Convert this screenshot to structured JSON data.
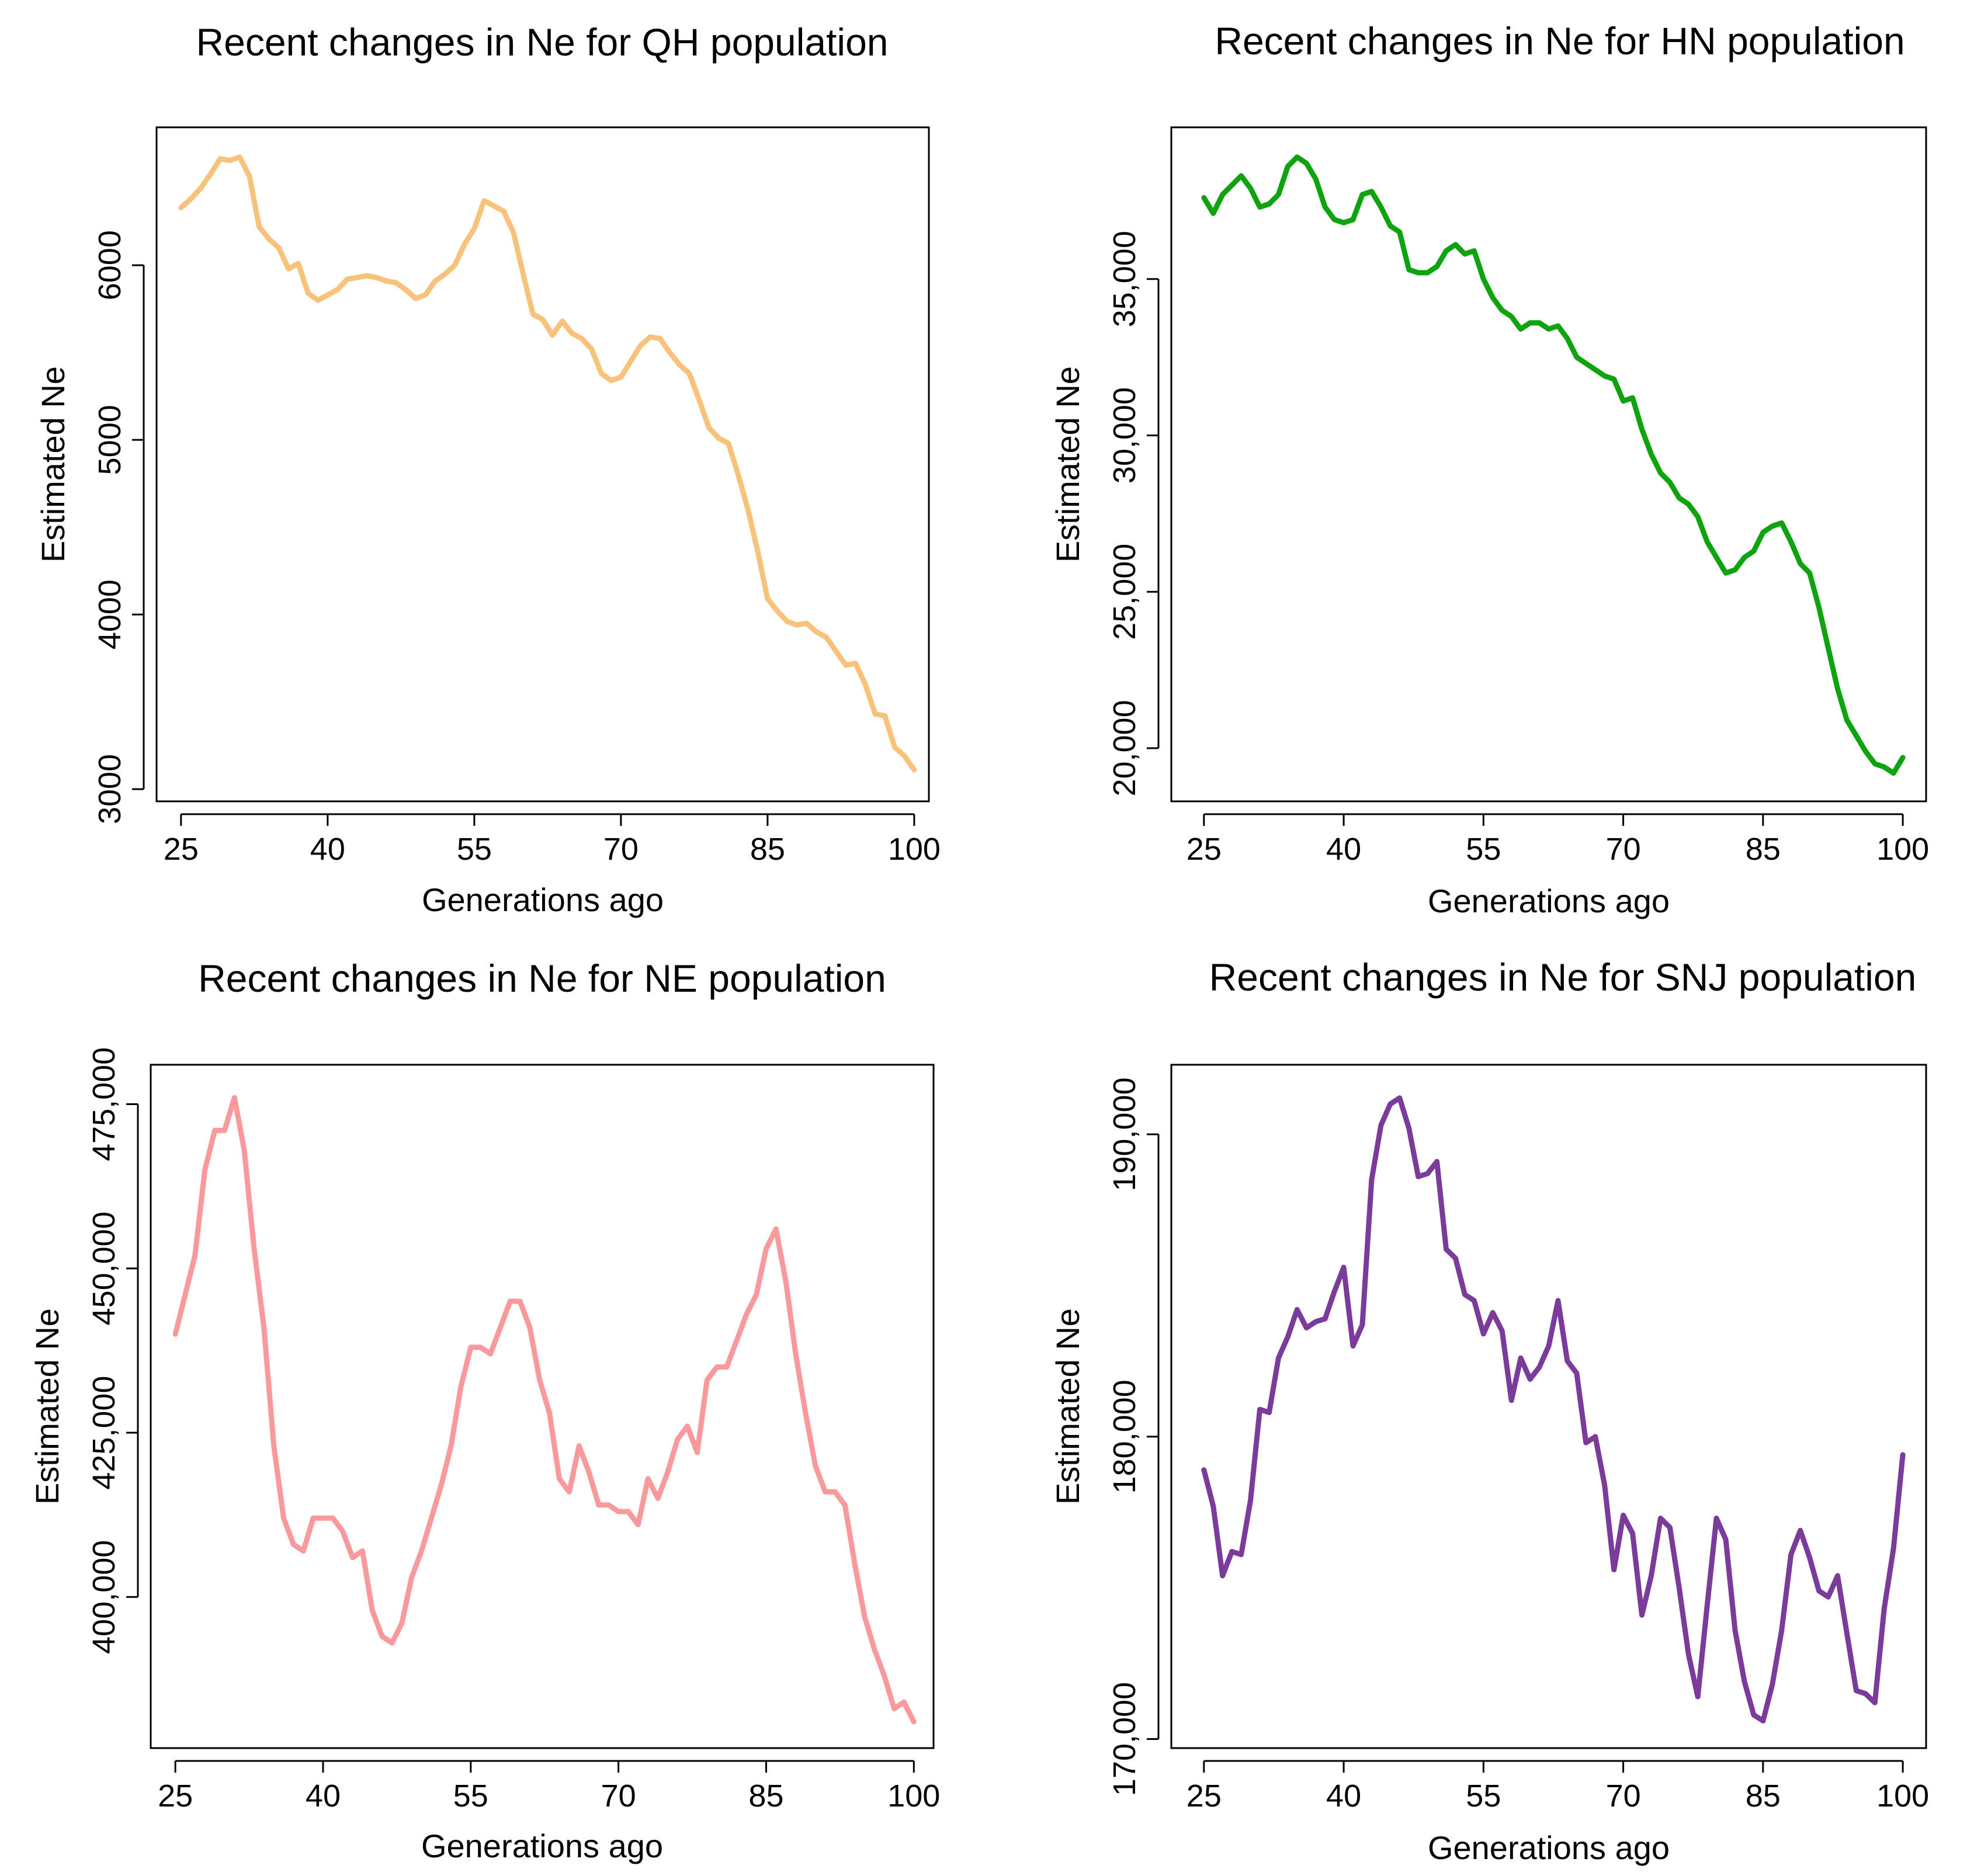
{
  "chart_data": [
    {
      "type": "line",
      "title": "Recent changes in Ne for QH population",
      "xlabel": "Generations ago",
      "ylabel": "Estimated Ne",
      "color": "#f9c27b",
      "xlim": [
        22.5,
        101.5
      ],
      "ylim": [
        2930,
        6790
      ],
      "xticks": [
        25,
        40,
        55,
        70,
        85,
        100
      ],
      "xtick_labels": [
        "25",
        "40",
        "55",
        "70",
        "85",
        "100"
      ],
      "yticks": [
        3000,
        4000,
        5000,
        6000
      ],
      "ytick_labels": [
        "3000",
        "4000",
        "5000",
        "6000"
      ],
      "x": [
        25,
        26,
        27,
        28,
        29,
        30,
        31,
        32,
        33,
        34,
        35,
        36,
        37,
        38,
        39,
        40,
        41,
        42,
        43,
        44,
        45,
        46,
        47,
        48,
        49,
        50,
        51,
        52,
        53,
        54,
        55,
        56,
        57,
        58,
        59,
        60,
        61,
        62,
        63,
        64,
        65,
        66,
        67,
        68,
        69,
        70,
        71,
        72,
        73,
        74,
        75,
        76,
        77,
        78,
        79,
        80,
        81,
        82,
        83,
        84,
        85,
        86,
        87,
        88,
        89,
        90,
        91,
        92,
        93,
        94,
        95,
        96,
        97,
        98,
        99,
        100
      ],
      "values": [
        6330,
        6380,
        6440,
        6520,
        6610,
        6600,
        6620,
        6510,
        6220,
        6150,
        6100,
        5980,
        6010,
        5840,
        5800,
        5830,
        5860,
        5920,
        5930,
        5940,
        5930,
        5910,
        5900,
        5860,
        5810,
        5830,
        5910,
        5950,
        6000,
        6120,
        6210,
        6370,
        6340,
        6310,
        6190,
        5950,
        5720,
        5690,
        5600,
        5680,
        5610,
        5580,
        5520,
        5380,
        5340,
        5360,
        5450,
        5540,
        5590,
        5580,
        5500,
        5430,
        5380,
        5230,
        5070,
        5010,
        4980,
        4800,
        4600,
        4360,
        4090,
        4020,
        3960,
        3940,
        3950,
        3900,
        3870,
        3790,
        3710,
        3720,
        3600,
        3430,
        3420,
        3240,
        3190,
        3110
      ]
    },
    {
      "type": "line",
      "title": "Recent changes in Ne for HN population",
      "xlabel": "Generations ago",
      "ylabel": "Estimated Ne",
      "color": "#0fa30f",
      "xlim": [
        21.5,
        102.5
      ],
      "ylim": [
        18300,
        39850
      ],
      "xticks": [
        25,
        40,
        55,
        70,
        85,
        100
      ],
      "xtick_labels": [
        "25",
        "40",
        "55",
        "70",
        "85",
        "100"
      ],
      "yticks": [
        20000,
        25000,
        30000,
        35000
      ],
      "ytick_labels": [
        "20,000",
        "25,000",
        "30,000",
        "35,000"
      ],
      "x": [
        25,
        26,
        27,
        28,
        29,
        30,
        31,
        32,
        33,
        34,
        35,
        36,
        37,
        38,
        39,
        40,
        41,
        42,
        43,
        44,
        45,
        46,
        47,
        48,
        49,
        50,
        51,
        52,
        53,
        54,
        55,
        56,
        57,
        58,
        59,
        60,
        61,
        62,
        63,
        64,
        65,
        66,
        67,
        68,
        69,
        70,
        71,
        72,
        73,
        74,
        75,
        76,
        77,
        78,
        79,
        80,
        81,
        82,
        83,
        84,
        85,
        86,
        87,
        88,
        89,
        90,
        91,
        92,
        93,
        94,
        95,
        96,
        97,
        98,
        99,
        100
      ],
      "values": [
        37600,
        37100,
        37700,
        38000,
        38300,
        37900,
        37300,
        37400,
        37700,
        38600,
        38900,
        38700,
        38200,
        37300,
        36900,
        36800,
        36900,
        37700,
        37800,
        37300,
        36700,
        36500,
        35300,
        35200,
        35200,
        35400,
        35900,
        36100,
        35800,
        35900,
        35000,
        34400,
        34000,
        33800,
        33400,
        33600,
        33600,
        33400,
        33500,
        33100,
        32500,
        32300,
        32100,
        31900,
        31800,
        31100,
        31200,
        30200,
        29400,
        28800,
        28500,
        28000,
        27800,
        27400,
        26600,
        26100,
        25600,
        25700,
        26100,
        26300,
        26900,
        27100,
        27200,
        26600,
        25900,
        25600,
        24500,
        23200,
        21900,
        20900,
        20400,
        19900,
        19500,
        19400,
        19200,
        19700
      ]
    },
    {
      "type": "line",
      "title": "Recent changes in Ne for NE population",
      "xlabel": "Generations ago",
      "ylabel": "Estimated Ne",
      "color": "#f9999c",
      "xlim": [
        22.5,
        102
      ],
      "ylim": [
        377000,
        481000
      ],
      "xticks": [
        25,
        40,
        55,
        70,
        85,
        100
      ],
      "xtick_labels": [
        "25",
        "40",
        "55",
        "70",
        "85",
        "100"
      ],
      "yticks": [
        400000,
        425000,
        450000,
        475000
      ],
      "ytick_labels": [
        "400,000",
        "425,000",
        "450,000",
        "475,000"
      ],
      "x": [
        25,
        26,
        27,
        28,
        29,
        30,
        31,
        32,
        33,
        34,
        35,
        36,
        37,
        38,
        39,
        40,
        41,
        42,
        43,
        44,
        45,
        46,
        47,
        48,
        49,
        50,
        51,
        52,
        53,
        54,
        55,
        56,
        57,
        58,
        59,
        60,
        61,
        62,
        63,
        64,
        65,
        66,
        67,
        68,
        69,
        70,
        71,
        72,
        73,
        74,
        75,
        76,
        77,
        78,
        79,
        80,
        81,
        82,
        83,
        84,
        85,
        86,
        87,
        88,
        89,
        90,
        91,
        92,
        93,
        94,
        95,
        96,
        97,
        98,
        99,
        100
      ],
      "values": [
        440000,
        446000,
        452000,
        465000,
        471000,
        471000,
        476000,
        468000,
        453000,
        441000,
        423000,
        412000,
        408000,
        407000,
        412000,
        412000,
        412000,
        410000,
        406000,
        407000,
        398000,
        394000,
        393000,
        396000,
        403000,
        407000,
        412000,
        417000,
        423000,
        432000,
        438000,
        438000,
        437000,
        441000,
        445000,
        445000,
        441000,
        433000,
        428000,
        418000,
        416000,
        423000,
        419000,
        414000,
        414000,
        413000,
        413000,
        411000,
        418000,
        415000,
        419000,
        424000,
        426000,
        422000,
        433000,
        435000,
        435000,
        439000,
        443000,
        446000,
        453000,
        456000,
        448000,
        437000,
        428000,
        420000,
        416000,
        416000,
        414000,
        405000,
        397000,
        392000,
        388000,
        383000,
        384000,
        381000
      ]
    },
    {
      "type": "line",
      "title": "Recent changes in Ne for SNJ population",
      "xlabel": "Generations ago",
      "ylabel": "Estimated Ne",
      "color": "#7b3b9a",
      "xlim": [
        21.5,
        102.5
      ],
      "ylim": [
        169700,
        192300
      ],
      "xticks": [
        25,
        40,
        55,
        70,
        85,
        100
      ],
      "xtick_labels": [
        "25",
        "40",
        "55",
        "70",
        "85",
        "100"
      ],
      "yticks": [
        170000,
        180000,
        190000
      ],
      "ytick_labels": [
        "170,000",
        "180,000",
        "190,000"
      ],
      "x": [
        25,
        26,
        27,
        28,
        29,
        30,
        31,
        32,
        33,
        34,
        35,
        36,
        37,
        38,
        39,
        40,
        41,
        42,
        43,
        44,
        45,
        46,
        47,
        48,
        49,
        50,
        51,
        52,
        53,
        54,
        55,
        56,
        57,
        58,
        59,
        60,
        61,
        62,
        63,
        64,
        65,
        66,
        67,
        68,
        69,
        70,
        71,
        72,
        73,
        74,
        75,
        76,
        77,
        78,
        79,
        80,
        81,
        82,
        83,
        84,
        85,
        86,
        87,
        88,
        89,
        90,
        91,
        92,
        93,
        94,
        95,
        96,
        97,
        98,
        99,
        100
      ],
      "values": [
        178900,
        177700,
        175400,
        176200,
        176100,
        177900,
        180900,
        180800,
        182600,
        183300,
        184200,
        183600,
        183800,
        183900,
        184800,
        185600,
        183000,
        183700,
        188500,
        190300,
        191000,
        191200,
        190200,
        188600,
        188700,
        189100,
        186200,
        185900,
        184700,
        184500,
        183400,
        184100,
        183500,
        181200,
        182600,
        181900,
        182300,
        183000,
        184500,
        182500,
        182100,
        179800,
        180000,
        178400,
        175600,
        177400,
        176800,
        174100,
        175400,
        177300,
        177000,
        175000,
        172800,
        171400,
        174400,
        177300,
        176600,
        173600,
        171900,
        170800,
        170600,
        171800,
        173600,
        176100,
        176900,
        176000,
        174900,
        174700,
        175400,
        173500,
        171600,
        171500,
        171200,
        174300,
        176300,
        179400
      ]
    }
  ]
}
